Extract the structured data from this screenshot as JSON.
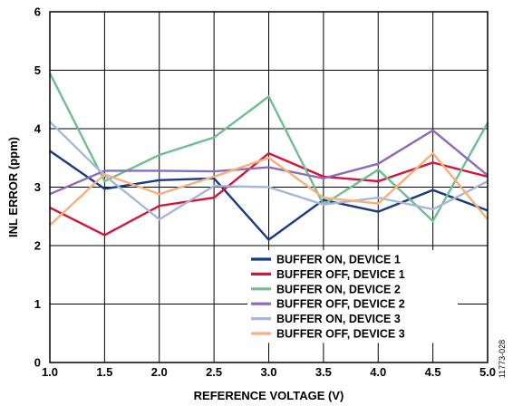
{
  "chart_data": {
    "type": "line",
    "title": "",
    "xlabel": "REFERENCE VOLTAGE (V)",
    "ylabel": "INL ERROR (ppm)",
    "x": [
      1.0,
      1.5,
      2.0,
      2.5,
      3.0,
      3.5,
      4.0,
      4.5,
      5.0
    ],
    "xlim": [
      1.0,
      5.0
    ],
    "ylim": [
      0,
      6
    ],
    "xticks": [
      "1.0",
      "1.5",
      "2.0",
      "2.5",
      "3.0",
      "3.5",
      "4.0",
      "4.5",
      "5.0"
    ],
    "yticks": [
      "0",
      "1",
      "2",
      "3",
      "4",
      "5",
      "6"
    ],
    "grid": true,
    "legend_position": "bottom-right",
    "series": [
      {
        "name": "BUFFER ON, DEVICE 1",
        "color": "#1a3a82",
        "values": [
          3.62,
          2.97,
          3.12,
          3.15,
          2.1,
          2.78,
          2.58,
          2.95,
          2.6
        ]
      },
      {
        "name": "BUFFER OFF, DEVICE 1",
        "color": "#d4143c",
        "values": [
          2.65,
          2.18,
          2.68,
          2.82,
          3.58,
          3.18,
          3.1,
          3.42,
          3.18
        ]
      },
      {
        "name": "BUFFER ON, DEVICE 2",
        "color": "#6fbf8e",
        "values": [
          4.95,
          3.1,
          3.55,
          3.85,
          4.55,
          2.7,
          3.3,
          2.42,
          4.1
        ]
      },
      {
        "name": "BUFFER OFF, DEVICE 2",
        "color": "#8c6bb8",
        "values": [
          2.88,
          3.28,
          3.28,
          3.27,
          3.34,
          3.15,
          3.4,
          3.97,
          3.2
        ]
      },
      {
        "name": "BUFFER ON, DEVICE 3",
        "color": "#a9b7d6",
        "values": [
          4.12,
          3.2,
          2.45,
          3.02,
          3.0,
          2.7,
          2.82,
          2.62,
          3.1
        ]
      },
      {
        "name": "BUFFER OFF, DEVICE 3",
        "color": "#f7b07a",
        "values": [
          2.35,
          3.22,
          2.88,
          3.18,
          3.5,
          2.82,
          2.72,
          3.58,
          2.45
        ]
      }
    ]
  },
  "figure_id": "11773-028"
}
